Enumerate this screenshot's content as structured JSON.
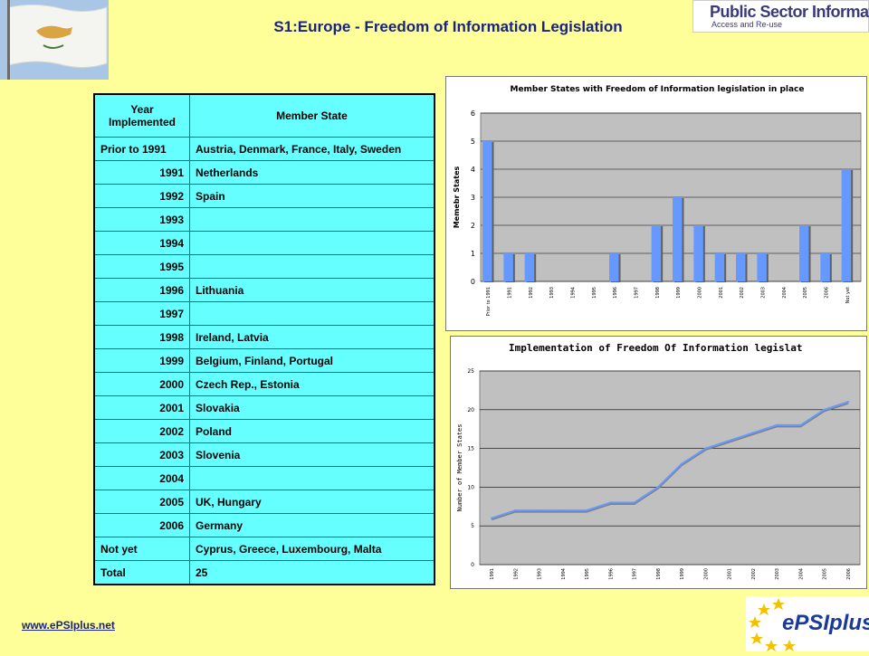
{
  "page": {
    "title": "S1:Europe - Freedom of Information Legislation",
    "link": "www.ePSIplus.net"
  },
  "logos": {
    "psi_line1": "Public Sector Information",
    "psi_line2": "Access and Re-use",
    "epsi": "ePSIplus"
  },
  "colors": {
    "background": "#ffff99",
    "table": "#66ffff",
    "title": "#1a237e",
    "bar": "#6699ff",
    "line": "#6699ff",
    "plot_bg": "#c0c0c0"
  },
  "table": {
    "headers": [
      "Year Implemented",
      "Member State"
    ],
    "rows": [
      {
        "year": "Prior to 1991",
        "states": "Austria, Denmark, France, Italy, Sweden",
        "align": "left"
      },
      {
        "year": "1991",
        "states": "Netherlands",
        "align": "right"
      },
      {
        "year": "1992",
        "states": "Spain",
        "align": "right"
      },
      {
        "year": "1993",
        "states": "",
        "align": "right"
      },
      {
        "year": "1994",
        "states": "",
        "align": "right"
      },
      {
        "year": "1995",
        "states": "",
        "align": "right"
      },
      {
        "year": "1996",
        "states": "Lithuania",
        "align": "right"
      },
      {
        "year": "1997",
        "states": "",
        "align": "right"
      },
      {
        "year": "1998",
        "states": "Ireland, Latvia",
        "align": "right"
      },
      {
        "year": "1999",
        "states": "Belgium, Finland, Portugal",
        "align": "right"
      },
      {
        "year": "2000",
        "states": "Czech Rep., Estonia",
        "align": "right"
      },
      {
        "year": "2001",
        "states": "Slovakia",
        "align": "right"
      },
      {
        "year": "2002",
        "states": "Poland",
        "align": "right"
      },
      {
        "year": "2003",
        "states": "Slovenia",
        "align": "right"
      },
      {
        "year": "2004",
        "states": "",
        "align": "right"
      },
      {
        "year": "2005",
        "states": "UK, Hungary",
        "align": "right"
      },
      {
        "year": "2006",
        "states": "Germany",
        "align": "right"
      },
      {
        "year": "Not yet",
        "states": "Cyprus, Greece, Luxembourg, Malta",
        "align": "left"
      },
      {
        "year": "Total",
        "states": "25",
        "align": "left"
      }
    ]
  },
  "chart_data": [
    {
      "type": "bar",
      "title": "Member States with Freedom of Information legislation in place",
      "xlabel": "",
      "ylabel": "Memebr States",
      "ylim": [
        0,
        6
      ],
      "yticks": [
        "0",
        "1",
        "2",
        "3",
        "4",
        "5",
        "6"
      ],
      "grid": true,
      "categories": [
        "Prior to 1991",
        "1991",
        "1992",
        "1993",
        "1994",
        "1995",
        "1996",
        "1997",
        "1998",
        "1999",
        "2000",
        "2001",
        "2002",
        "2003",
        "2004",
        "2005",
        "2006",
        "Not yet"
      ],
      "values": [
        5,
        1,
        1,
        0,
        0,
        0,
        1,
        0,
        2,
        3,
        2,
        1,
        1,
        1,
        0,
        2,
        1,
        4
      ]
    },
    {
      "type": "line",
      "title": "Implementation of Freedom Of Information legislat",
      "xlabel": "",
      "ylabel": "Number of Member States",
      "ylim": [
        0,
        25
      ],
      "yticks": [
        "0",
        "5",
        "10",
        "15",
        "20",
        "25"
      ],
      "grid": true,
      "categories": [
        "1991",
        "1992",
        "1993",
        "1994",
        "1995",
        "1996",
        "1997",
        "1998",
        "1999",
        "2000",
        "2001",
        "2002",
        "2003",
        "2004",
        "2005",
        "2006"
      ],
      "values": [
        6,
        7,
        7,
        7,
        7,
        8,
        8,
        10,
        13,
        15,
        16,
        17,
        18,
        18,
        20,
        21
      ]
    }
  ]
}
